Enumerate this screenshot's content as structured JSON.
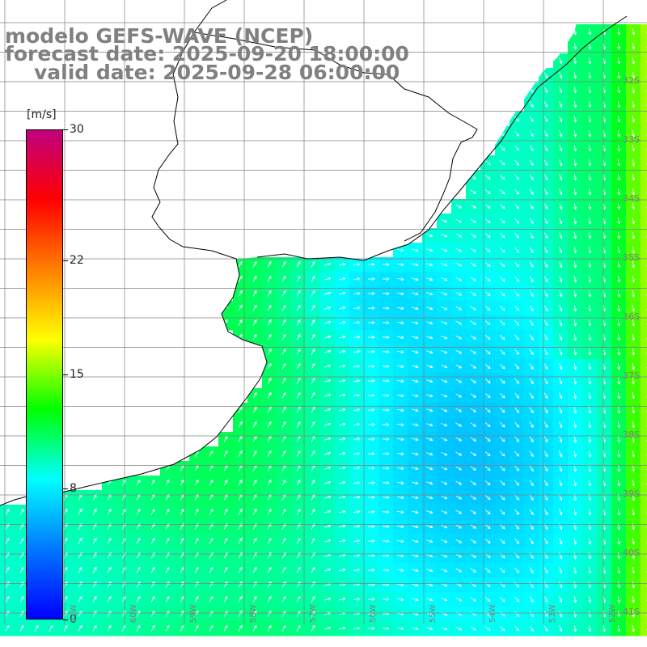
{
  "title": {
    "line1": "modelo GEFS-WAVE (NCEP)",
    "line2": "forecast date: 2025-09-20 18:00:00",
    "line3": "valid date: 2025-09-28 06:00:00"
  },
  "colorbar": {
    "units": "[m/s]",
    "ticks": [
      {
        "value": 30,
        "label": "30"
      },
      {
        "value": 22,
        "label": "22"
      },
      {
        "value": 15,
        "label": "15"
      },
      {
        "value": 8,
        "label": "8"
      },
      {
        "value": 0,
        "label": "0"
      }
    ],
    "min": 0,
    "max": 30,
    "colors": [
      "#0000ff",
      "#0078ff",
      "#00ffff",
      "#00ff00",
      "#ffff00",
      "#ff8000",
      "#ff0000",
      "#c00080"
    ]
  },
  "lat_labels": [
    "32S",
    "33S",
    "34S",
    "35S",
    "36S",
    "37S",
    "38S",
    "39S",
    "40S",
    "41S"
  ],
  "lon_labels": [
    "61W",
    "60W",
    "59W",
    "58W",
    "57W",
    "56W",
    "55W",
    "54W",
    "53W",
    "52W"
  ],
  "field": {
    "description_free": true,
    "land_color": "#ffffff",
    "coast_color": "#000000",
    "grid_color": "#808080",
    "arrow_color": "#ffffff"
  }
}
